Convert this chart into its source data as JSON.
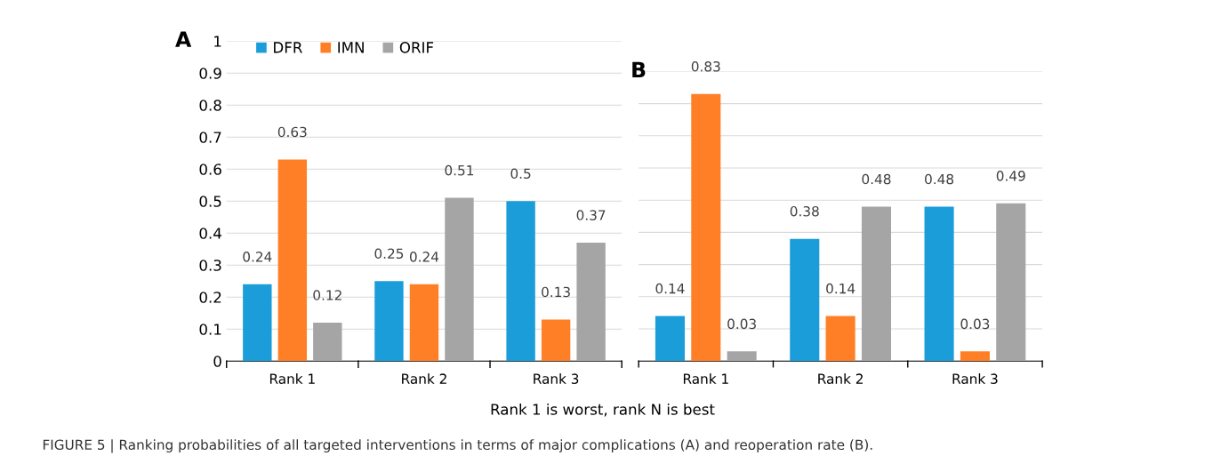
{
  "chart_data": [
    {
      "type": "bar",
      "title": "A",
      "categories": [
        "Rank 1",
        "Rank 2",
        "Rank 3"
      ],
      "series": [
        {
          "name": "DFR",
          "color": "#1b9dd9",
          "values": [
            0.24,
            0.25,
            0.5
          ]
        },
        {
          "name": "IMN",
          "color": "#ff7f27",
          "values": [
            0.63,
            0.24,
            0.13
          ]
        },
        {
          "name": "ORIF",
          "color": "#a5a5a5",
          "values": [
            0.12,
            0.51,
            0.37
          ]
        }
      ],
      "ylim": [
        0,
        1
      ],
      "yticks": [
        0,
        0.1,
        0.2,
        0.3,
        0.4,
        0.5,
        0.6,
        0.7,
        0.8,
        0.9,
        1
      ],
      "grid": "y",
      "legend": "top",
      "data_labels": true,
      "annotations": [
        "Rank 1 is worst, rank N is best",
        "FIGURE 5 | Ranking probabilities of all targeted interventions in terms of major complications (A) and reoperation rate (B)."
      ]
    },
    {
      "type": "bar",
      "title": "B",
      "categories": [
        "Rank 1",
        "Rank 2",
        "Rank 3"
      ],
      "series": [
        {
          "color": "#1b9dd9",
          "values": [
            0.14,
            0.38,
            0.48
          ]
        },
        {
          "color": "#ff7f27",
          "values": [
            0.83,
            0.14,
            0.03
          ]
        },
        {
          "color": "#a5a5a5",
          "values": [
            0.03,
            0.48,
            0.49
          ]
        }
      ],
      "ylim": [
        0,
        0.9
      ],
      "yticks": [
        {
          "value": 0,
          "label": null
        },
        {
          "value": 0.1,
          "label": null
        },
        {
          "value": 0.2,
          "label": null
        },
        {
          "value": 0.3,
          "label": null
        },
        {
          "value": 0.4,
          "label": null
        },
        {
          "value": 0.5,
          "label": null
        },
        {
          "value": 0.6,
          "label": null
        },
        {
          "value": 0.7,
          "label": null
        },
        {
          "value": 0.8,
          "label": null
        },
        {
          "value": 0.9,
          "label": null
        }
      ],
      "grid": "y",
      "tick_labels": "x",
      "data_labels": true
    }
  ]
}
